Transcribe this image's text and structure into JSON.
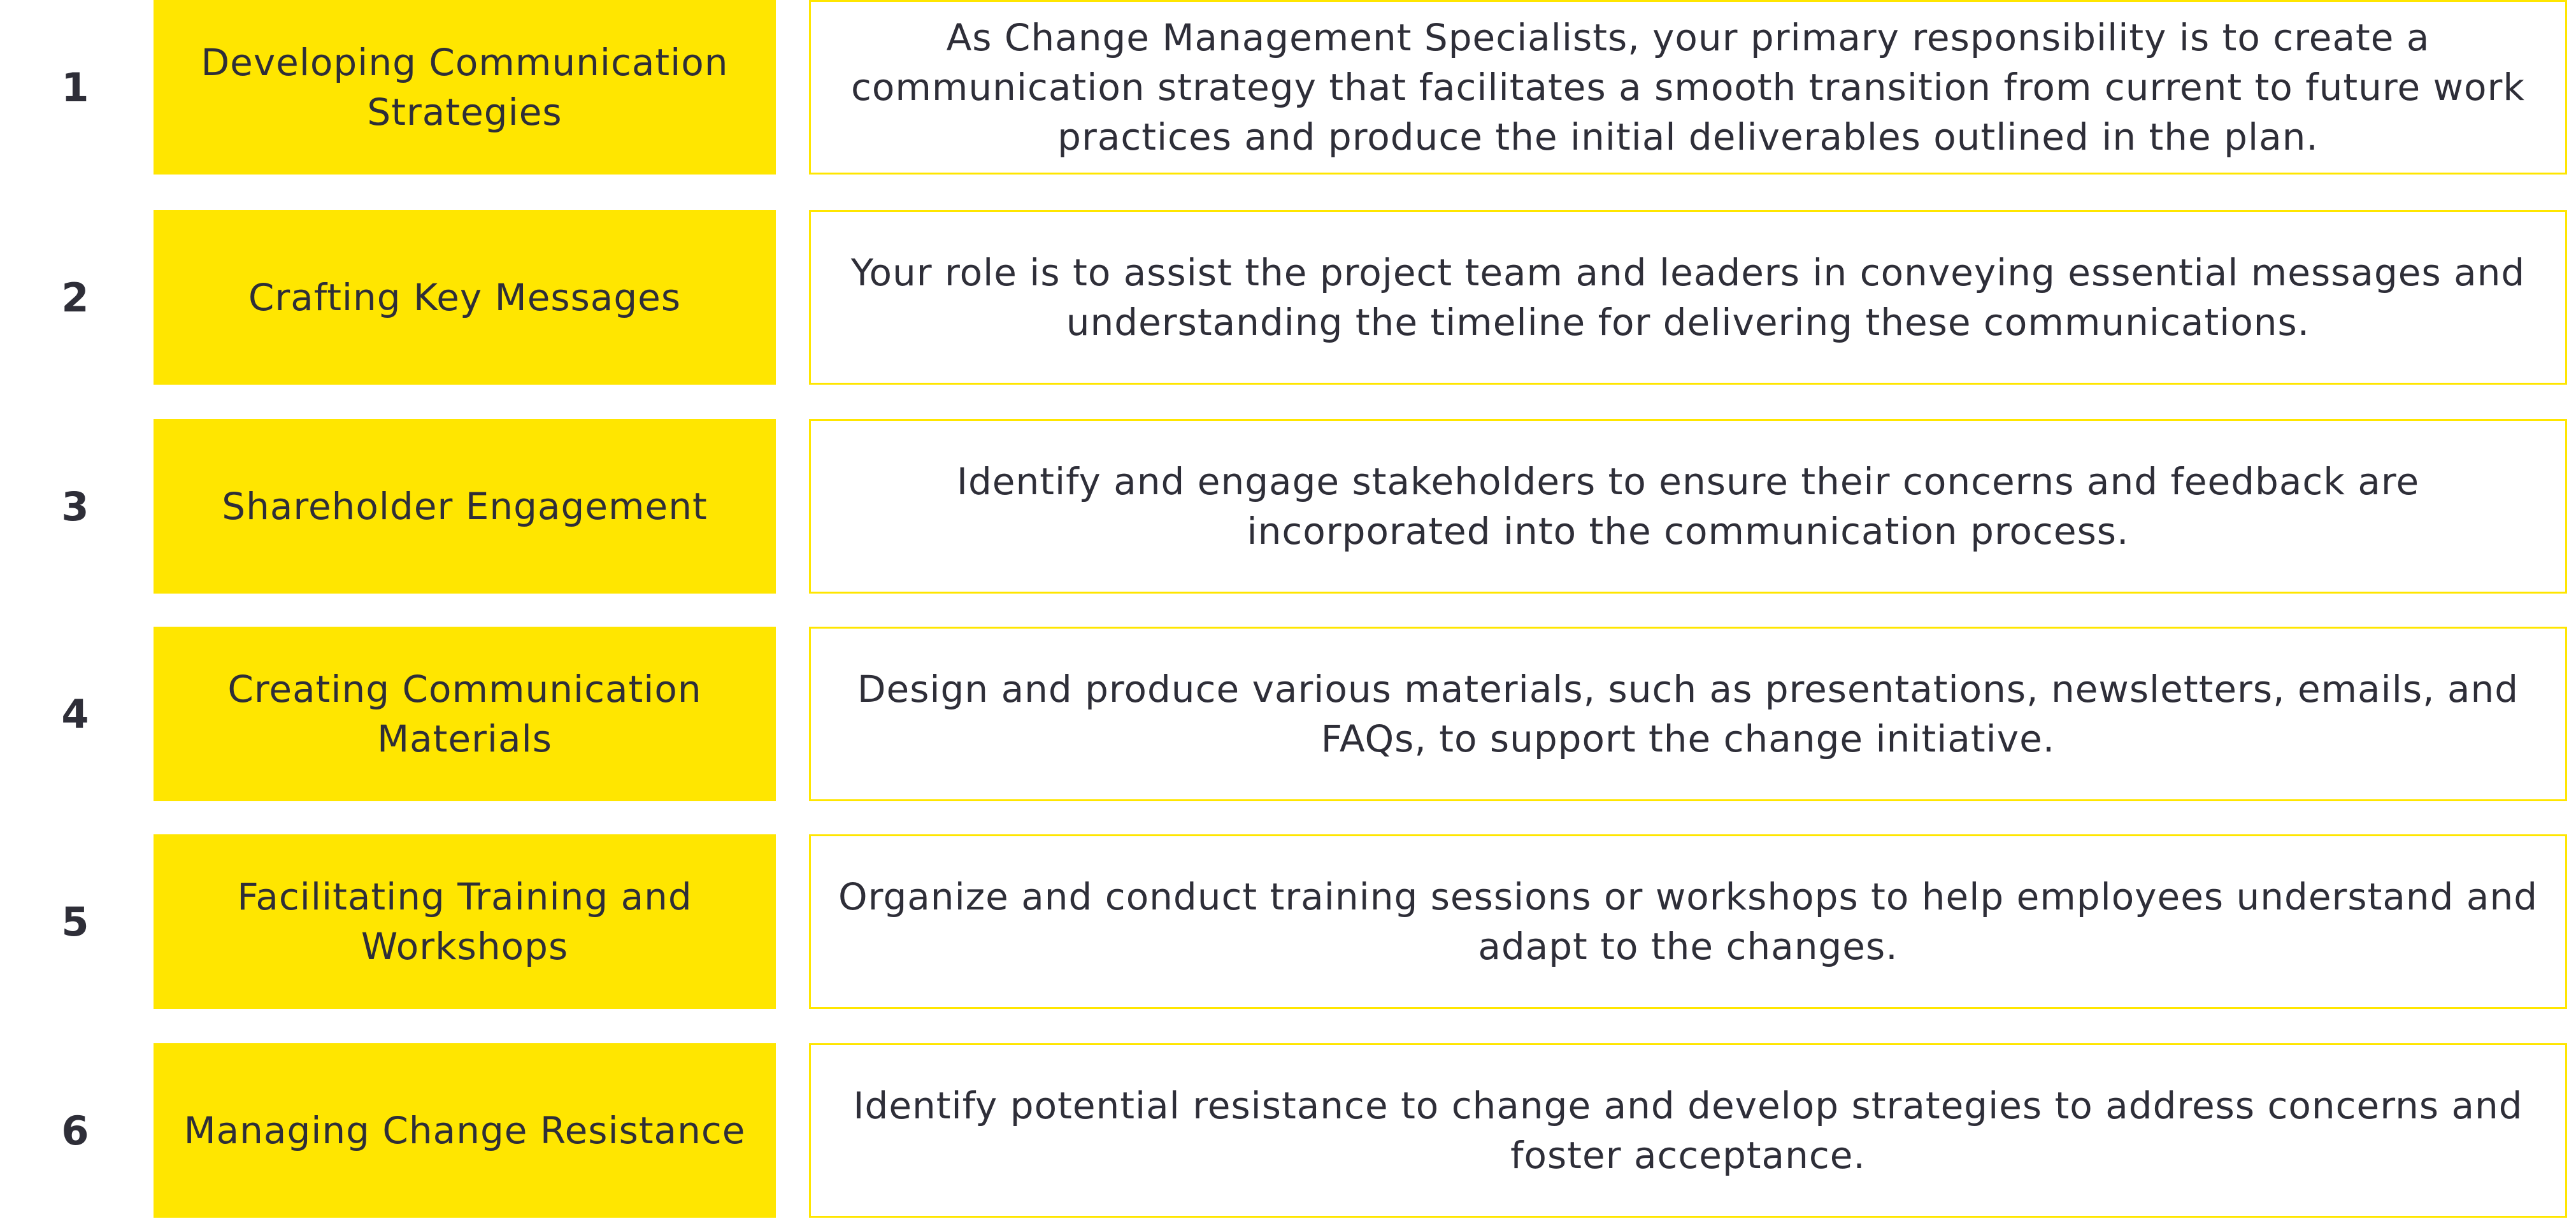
{
  "accent_color": "#ffe600",
  "text_color": "#2e2e38",
  "items": [
    {
      "number": "1",
      "title": "Developing Communication Strategies",
      "description": "As Change Management Specialists, your primary responsibility is to create a communication strategy that facilitates a smooth transition from current to future work practices and produce the initial deliverables outlined in the plan."
    },
    {
      "number": "2",
      "title": "Crafting Key Messages",
      "description": "Your role is to assist the project team and leaders in conveying essential messages and understanding the timeline for delivering these communications."
    },
    {
      "number": "3",
      "title": "Shareholder Engagement",
      "description": "Identify and engage stakeholders to ensure their concerns and feedback are incorporated into the communication process."
    },
    {
      "number": "4",
      "title": "Creating Communication Materials",
      "description": "Design and produce various materials, such as presentations, newsletters, emails, and FAQs, to support the change initiative."
    },
    {
      "number": "5",
      "title": "Facilitating Training and Workshops",
      "description": "Organize and conduct training sessions or workshops to help employees understand and adapt to the changes."
    },
    {
      "number": "6",
      "title": "Managing Change Resistance",
      "description": "Identify potential resistance to change and develop strategies to address concerns and foster acceptance."
    }
  ]
}
